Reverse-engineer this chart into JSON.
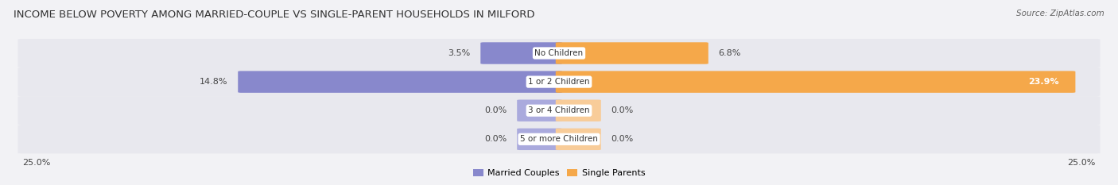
{
  "title": "INCOME BELOW POVERTY AMONG MARRIED-COUPLE VS SINGLE-PARENT HOUSEHOLDS IN MILFORD",
  "source": "Source: ZipAtlas.com",
  "categories": [
    "No Children",
    "1 or 2 Children",
    "3 or 4 Children",
    "5 or more Children"
  ],
  "married_values": [
    3.5,
    14.8,
    0.0,
    0.0
  ],
  "single_values": [
    6.8,
    23.9,
    0.0,
    0.0
  ],
  "married_color": "#8888cc",
  "single_color": "#f5a84a",
  "married_color_light": "#aaaadd",
  "single_color_light": "#f8cc99",
  "max_val": 25.0,
  "background_color": "#f2f2f5",
  "row_bg_color": "#e8e8ee",
  "title_fontsize": 9.5,
  "label_fontsize": 8,
  "axis_label_fontsize": 8,
  "legend_fontsize": 8,
  "source_fontsize": 7.5,
  "category_fontsize": 7.5,
  "stub_val": 1.8
}
